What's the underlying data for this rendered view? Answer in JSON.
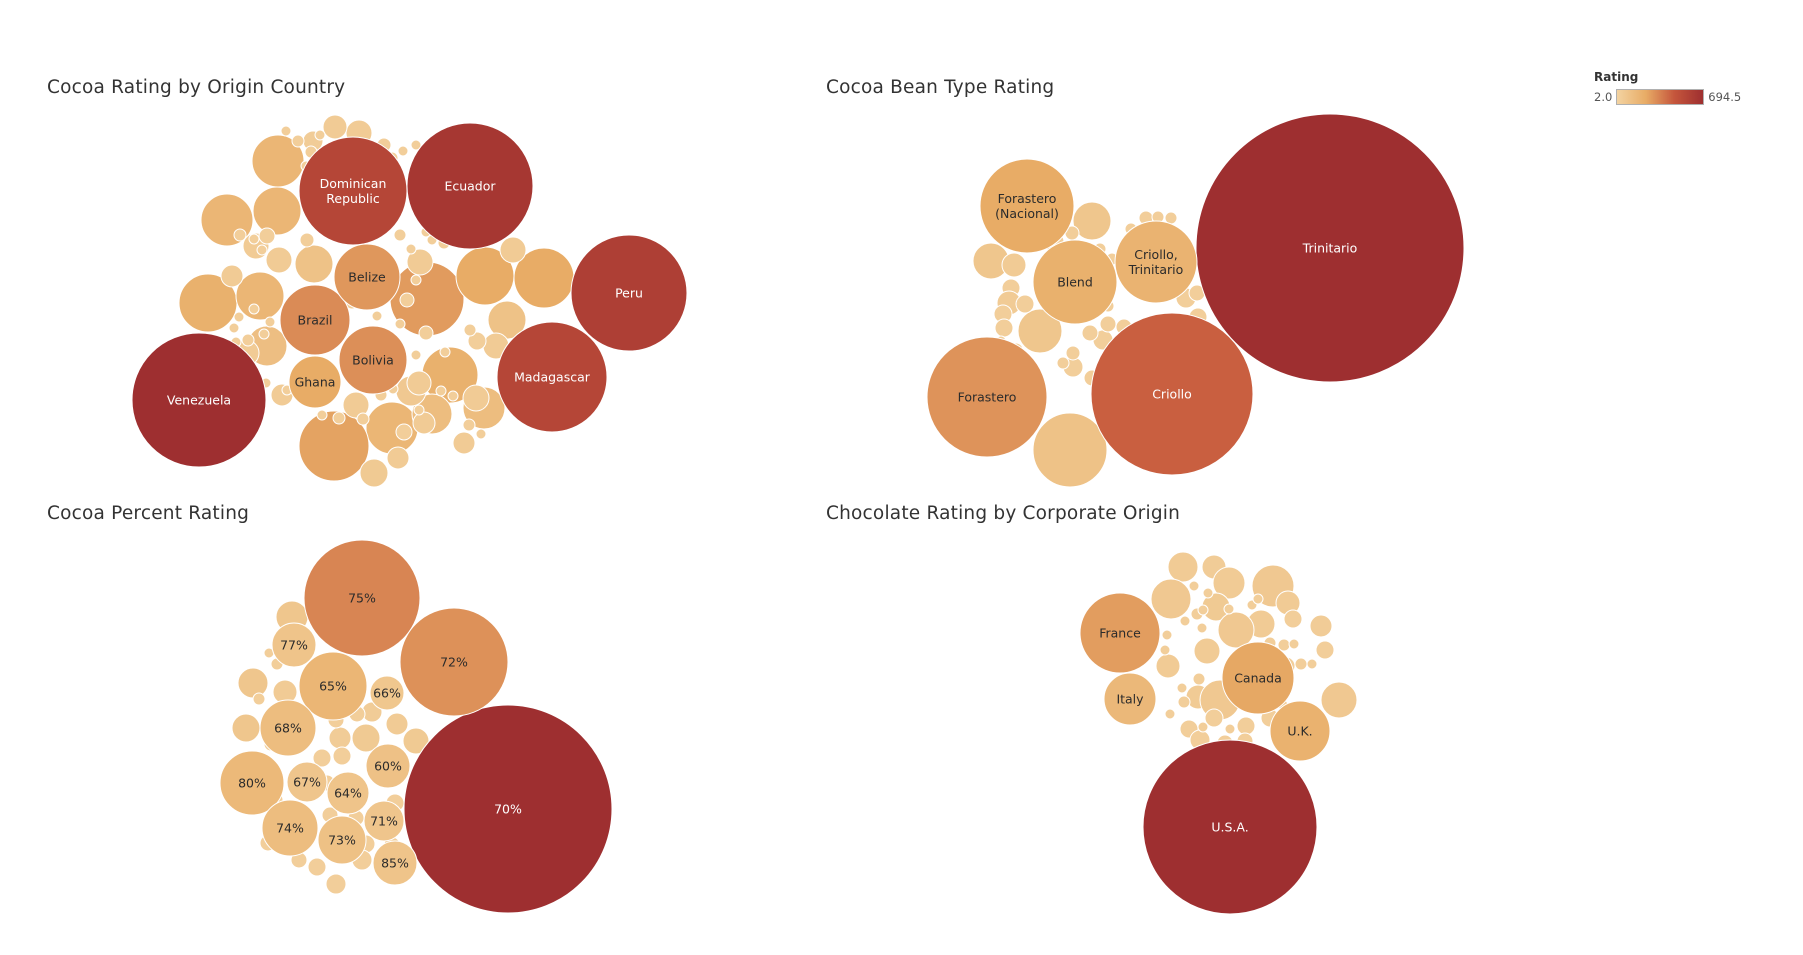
{
  "legend": {
    "title": "Rating",
    "min_label": "2.0",
    "max_label": "694.5",
    "color_low": "#f3d3a1",
    "color_high": "#9e2f30"
  },
  "chart_data": [
    {
      "type": "bubble",
      "title": "Cocoa Rating by Origin Country",
      "measure": "Rating",
      "labeled": [
        {
          "label": "Venezuela",
          "value": 694.5
        },
        {
          "label": "Ecuador",
          "value": 620
        },
        {
          "label": "Peru",
          "value": 540
        },
        {
          "label": "Dominican Republic",
          "value": 475
        },
        {
          "label": "Madagascar",
          "value": 475
        },
        {
          "label": "Brazil",
          "value": 190
        },
        {
          "label": "Belize",
          "value": 160
        },
        {
          "label": "Bolivia",
          "value": 180
        },
        {
          "label": "Ghana",
          "value": 110
        }
      ],
      "unlabeled_count": 88
    },
    {
      "type": "bubble",
      "title": "Cocoa Bean Type Rating",
      "measure": "Rating",
      "labeled": [
        {
          "label": "Trinitario",
          "value": 694.5
        },
        {
          "label": "Criollo",
          "value": 320
        },
        {
          "label": "Forastero",
          "value": 170
        },
        {
          "label": "Blend",
          "value": 90
        },
        {
          "label": "Forastero (Nacional)",
          "value": 110
        },
        {
          "label": "Criollo, Trinitario",
          "value": 80
        }
      ],
      "unlabeled_count": 38
    },
    {
      "type": "bubble",
      "title": "Cocoa Percent Rating",
      "measure": "Rating",
      "labeled": [
        {
          "label": "70%",
          "value": 694.5
        },
        {
          "label": "75%",
          "value": 205
        },
        {
          "label": "72%",
          "value": 175
        },
        {
          "label": "65%",
          "value": 70
        },
        {
          "label": "68%",
          "value": 45
        },
        {
          "label": "80%",
          "value": 58
        },
        {
          "label": "74%",
          "value": 45
        },
        {
          "label": "60%",
          "value": 32
        },
        {
          "label": "73%",
          "value": 33
        },
        {
          "label": "77%",
          "value": 25
        },
        {
          "label": "67%",
          "value": 22
        },
        {
          "label": "64%",
          "value": 24
        },
        {
          "label": "66%",
          "value": 18
        },
        {
          "label": "71%",
          "value": 22
        },
        {
          "label": "85%",
          "value": 25
        }
      ],
      "unlabeled_count": 30
    },
    {
      "type": "bubble",
      "title": "Chocolate Rating by Corporate Origin",
      "measure": "Rating",
      "labeled": [
        {
          "label": "U.S.A.",
          "value": 694.5
        },
        {
          "label": "France",
          "value": 145
        },
        {
          "label": "Canada",
          "value": 120
        },
        {
          "label": "U.K.",
          "value": 85
        },
        {
          "label": "Italy",
          "value": 60
        }
      ],
      "unlabeled_count": 45
    }
  ]
}
